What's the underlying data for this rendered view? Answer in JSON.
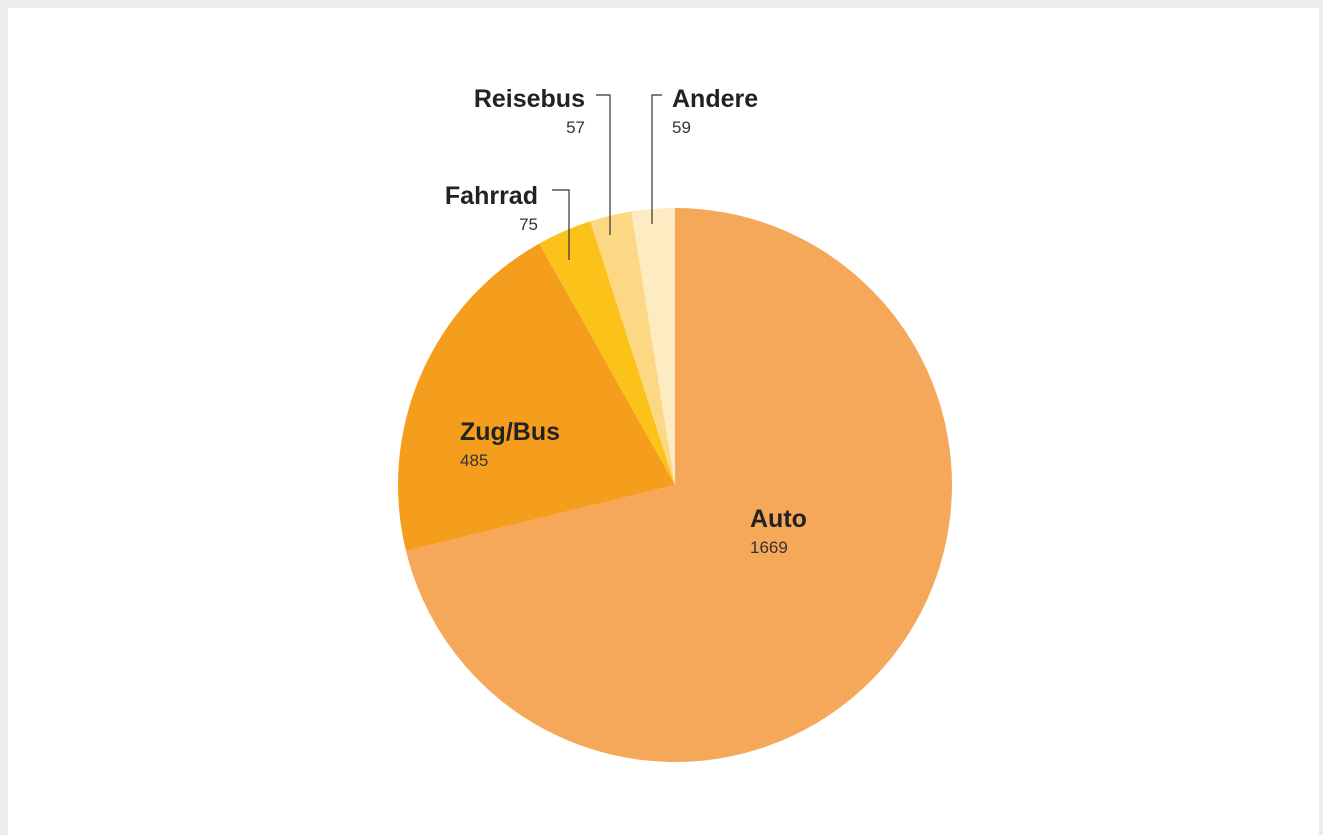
{
  "chart_data": {
    "type": "pie",
    "title": "",
    "start": "top-clockwise",
    "slices": [
      {
        "label": "Auto",
        "value": 1669,
        "display": "1669",
        "color": "#F5A85A"
      },
      {
        "label": "Zug/Bus",
        "value": 485,
        "display": "485",
        "color": "#F59E1E"
      },
      {
        "label": "Fahrrad",
        "value": 75,
        "display": "75",
        "color": "#FBC219"
      },
      {
        "label": "Reisebus",
        "value": 57,
        "display": "57",
        "color": "#FDD884"
      },
      {
        "label": "Andere",
        "value": 59,
        "display": "59",
        "color": "#FDEBC2"
      }
    ]
  }
}
